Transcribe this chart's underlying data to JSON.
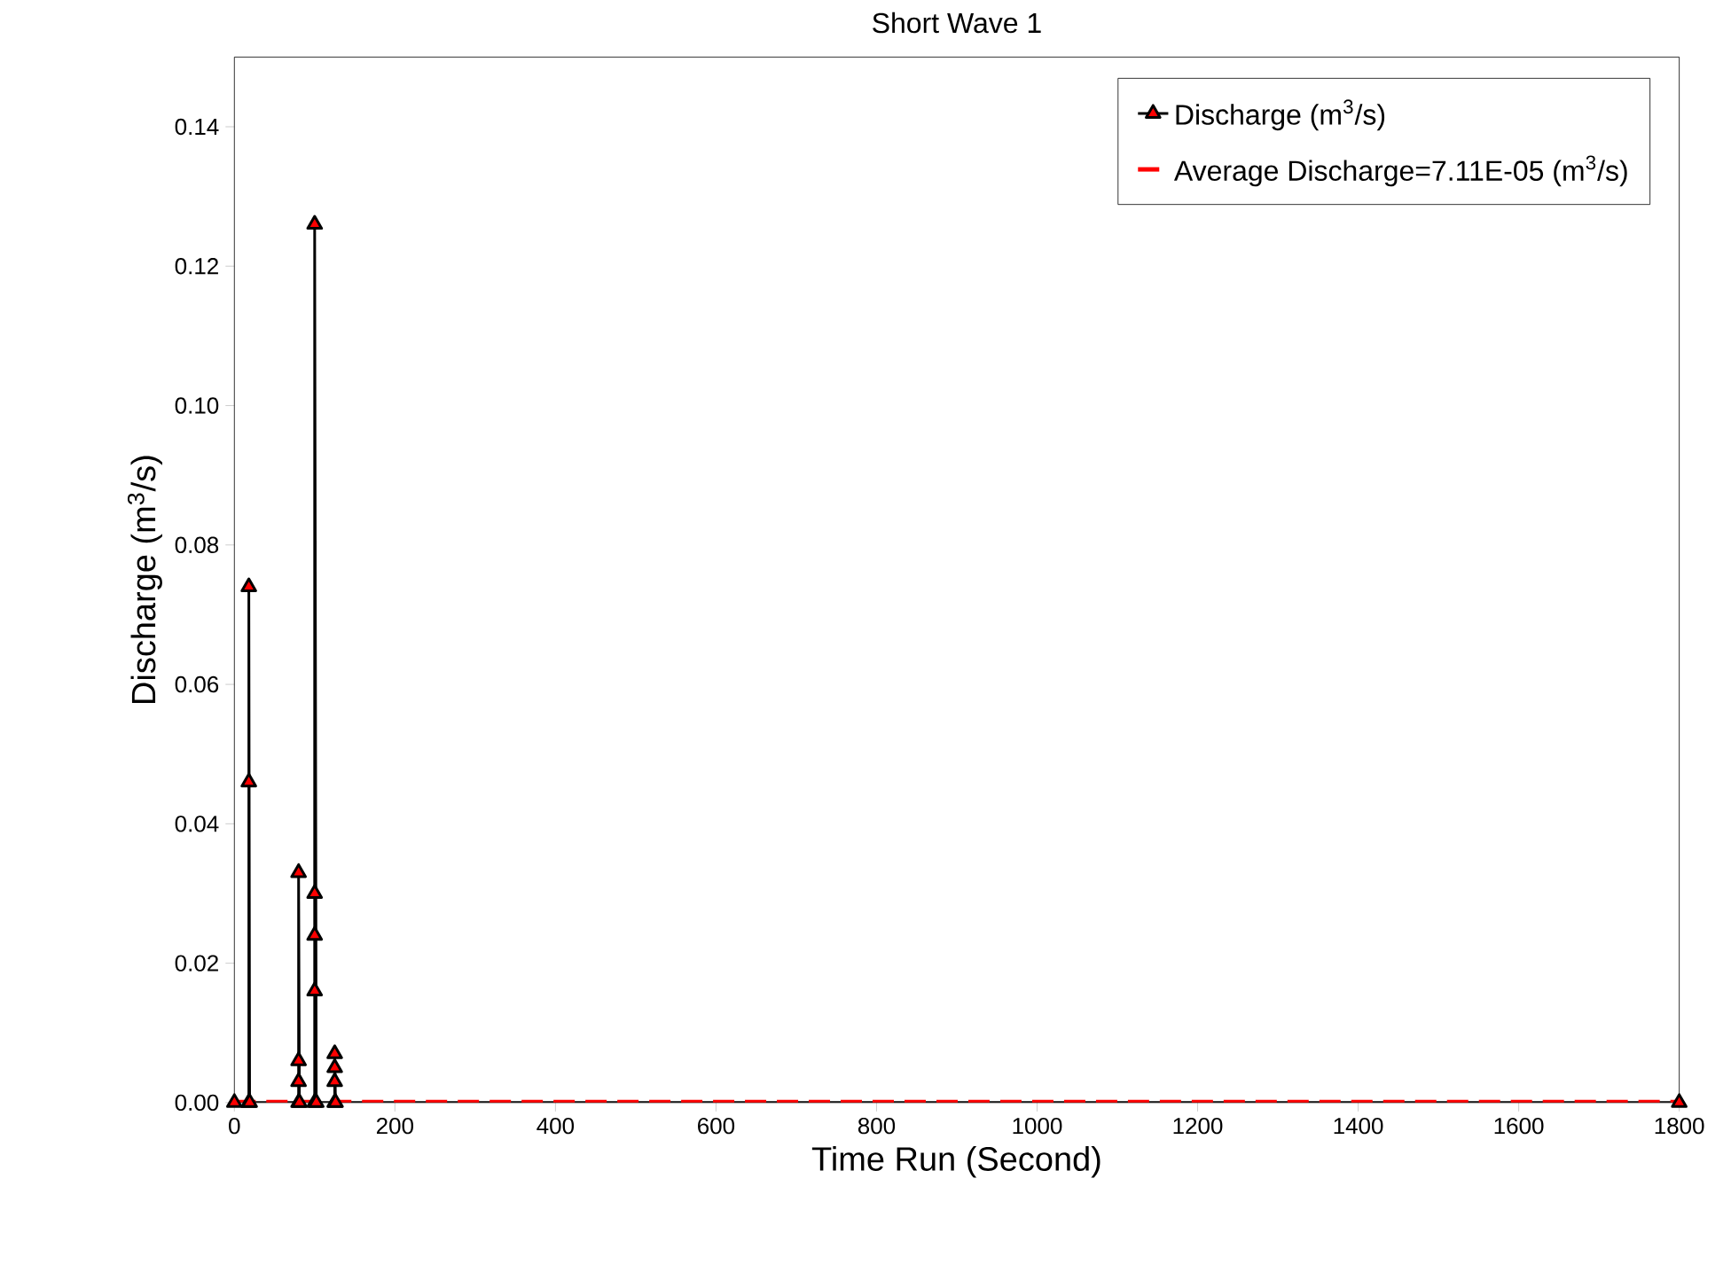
{
  "chart_data": {
    "type": "line",
    "title": "Short Wave 1",
    "xlabel": "Time Run (Second)",
    "ylabel": "Discharge (m$^{3}$/s)",
    "xlim": [
      0,
      1800
    ],
    "ylim": [
      0,
      0.15
    ],
    "xticks": [
      0,
      200,
      400,
      600,
      800,
      1000,
      1200,
      1400,
      1600,
      1800
    ],
    "yticks": [
      {
        "value": 0,
        "label": "0.00"
      },
      {
        "value": 0.02,
        "label": "0.02"
      },
      {
        "value": 0.04,
        "label": "0.04"
      },
      {
        "value": 0.06,
        "label": "0.06"
      },
      {
        "value": 0.08,
        "label": "0.08"
      },
      {
        "value": 0.1,
        "label": "0.10"
      },
      {
        "value": 0.12,
        "label": "0.12"
      },
      {
        "value": 0.14,
        "label": "0.14"
      }
    ],
    "grid": false,
    "legend": "top right",
    "series": [
      {
        "name": "Discharge (m$^{3}$/s)",
        "color": "#000000",
        "marker": "triangle",
        "line_style": "solid",
        "x": [
          0,
          18,
          18,
          18,
          19,
          80,
          80,
          80,
          80,
          81,
          100,
          100,
          100,
          100,
          100,
          102,
          125,
          125,
          125,
          125,
          126,
          1800
        ],
        "values": [
          0,
          0,
          0.046,
          0.074,
          0,
          0,
          0.003,
          0.006,
          0.033,
          0,
          0,
          0.016,
          0.024,
          0.03,
          0.126,
          0,
          0,
          0.003,
          0.005,
          0.007,
          0,
          0
        ]
      },
      {
        "name": "Average Discharge=7.11E-05  (m$^{3}$/s)",
        "color": "#ff0000",
        "marker": "none",
        "line_style": "dashed",
        "x": [
          0,
          1800
        ],
        "values": [
          7.11e-05,
          7.11e-05
        ]
      }
    ]
  }
}
